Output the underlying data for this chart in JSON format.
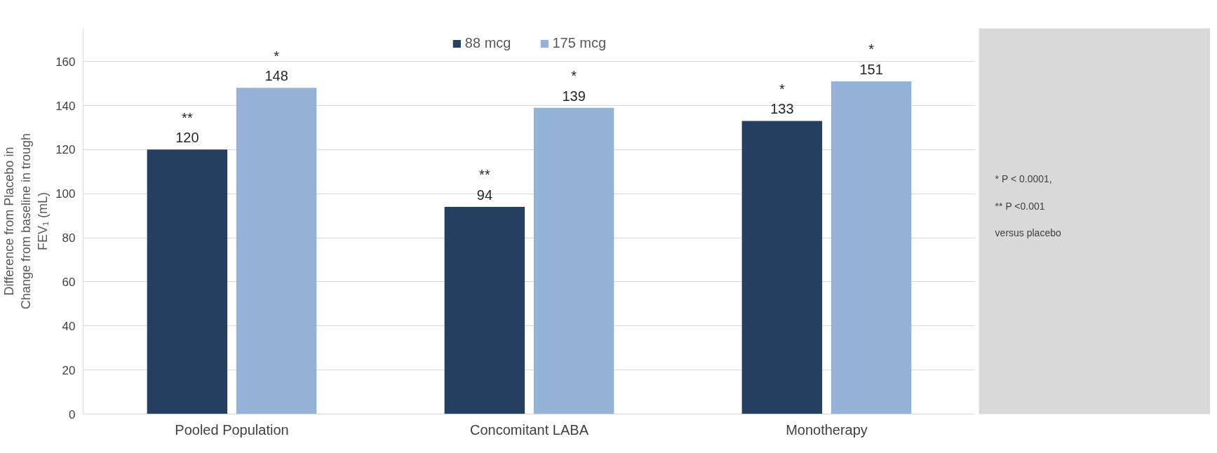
{
  "chart_data": {
    "type": "bar",
    "categories": [
      "Pooled Population",
      "Concomitant LABA",
      "Monotherapy"
    ],
    "ylabel": "Difference from Placebo in\nChange from baseline in trough\nFEV₁ (mL)",
    "series": [
      {
        "name": "88 mcg",
        "color": "#243f60",
        "values": [
          120,
          94,
          133
        ],
        "value_labels": [
          "**\n120",
          "**\n94",
          "*\n133"
        ]
      },
      {
        "name": "175 mcg",
        "color": "#95b3d7",
        "values": [
          148,
          139,
          151
        ],
        "value_labels": [
          "*\n148",
          "*\n139",
          "*\n151"
        ]
      }
    ],
    "ylim": [
      0,
      175
    ],
    "yticks": [
      0,
      20,
      40,
      60,
      80,
      100,
      120,
      140,
      160
    ],
    "grid": "y",
    "legend": "top",
    "annotations": [
      "* P < 0.0001,",
      "** P <0.001",
      "versus placebo"
    ]
  }
}
